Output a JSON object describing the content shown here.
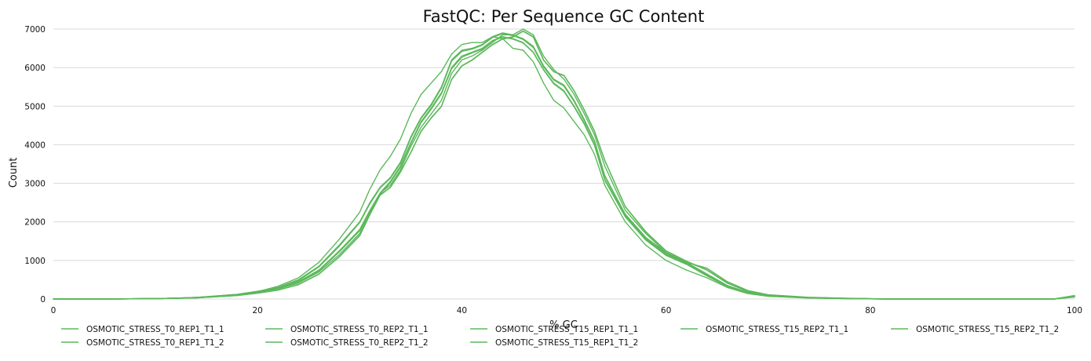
{
  "chart_data": {
    "type": "line",
    "title": "FastQC: Per Sequence GC Content",
    "xlabel": "% GC",
    "ylabel": "Count",
    "xlim": [
      0,
      100
    ],
    "ylim": [
      0,
      7000
    ],
    "x_ticks": [
      0,
      20,
      40,
      60,
      80,
      100
    ],
    "y_ticks": [
      0,
      1000,
      2000,
      3000,
      4000,
      5000,
      6000,
      7000
    ],
    "grid": true,
    "legend_position": "bottom",
    "line_color": "#5cb85c",
    "x": [
      0,
      5,
      10,
      12,
      14,
      16,
      18,
      20,
      22,
      24,
      26,
      28,
      30,
      31,
      32,
      33,
      34,
      35,
      36,
      37,
      38,
      39,
      40,
      41,
      42,
      43,
      44,
      45,
      46,
      47,
      48,
      49,
      50,
      51,
      52,
      53,
      54,
      56,
      58,
      60,
      62,
      64,
      66,
      68,
      70,
      74,
      78,
      82,
      90,
      98,
      100
    ],
    "series": [
      {
        "name": "OSMOTIC_STRESS_T0_REP1_T1_1",
        "values": [
          0,
          0,
          10,
          20,
          40,
          70,
          110,
          180,
          280,
          450,
          750,
          1250,
          1800,
          2300,
          2750,
          3050,
          3450,
          4050,
          4600,
          4950,
          5350,
          6000,
          6300,
          6400,
          6500,
          6700,
          6800,
          6750,
          6650,
          6400,
          5950,
          5600,
          5400,
          5000,
          4550,
          4000,
          3100,
          2150,
          1550,
          1150,
          920,
          620,
          330,
          160,
          80,
          30,
          10,
          0,
          0,
          0,
          80
        ]
      },
      {
        "name": "OSMOTIC_STRESS_T0_REP1_T1_2",
        "values": [
          0,
          0,
          10,
          20,
          40,
          70,
          110,
          180,
          270,
          430,
          730,
          1220,
          1770,
          2270,
          2720,
          3020,
          3420,
          4020,
          4570,
          4920,
          5320,
          5970,
          6270,
          6380,
          6480,
          6690,
          6790,
          6740,
          6640,
          6390,
          5940,
          5580,
          5380,
          4980,
          4530,
          3980,
          3080,
          2130,
          1530,
          1130,
          900,
          600,
          320,
          150,
          75,
          28,
          10,
          0,
          0,
          0,
          70
        ]
      },
      {
        "name": "OSMOTIC_STRESS_T0_REP2_T1_1",
        "values": [
          0,
          0,
          10,
          20,
          40,
          80,
          120,
          200,
          300,
          500,
          850,
          1400,
          2000,
          2500,
          2900,
          3150,
          3550,
          4200,
          4700,
          5050,
          5500,
          6200,
          6450,
          6500,
          6600,
          6800,
          6900,
          6850,
          6750,
          6550,
          6050,
          5700,
          5550,
          5150,
          4650,
          4100,
          3200,
          2200,
          1600,
          1200,
          950,
          650,
          350,
          170,
          85,
          32,
          12,
          0,
          0,
          0,
          90
        ]
      },
      {
        "name": "OSMOTIC_STRESS_T0_REP2_T1_2",
        "values": [
          0,
          0,
          10,
          20,
          40,
          80,
          120,
          200,
          290,
          480,
          830,
          1370,
          1980,
          2470,
          2880,
          3130,
          3520,
          4170,
          4680,
          5020,
          5470,
          6170,
          6420,
          6480,
          6580,
          6780,
          6880,
          6830,
          6730,
          6520,
          6020,
          5680,
          5520,
          5120,
          4620,
          4080,
          3180,
          2180,
          1580,
          1180,
          930,
          630,
          340,
          165,
          82,
          30,
          11,
          0,
          0,
          0,
          85
        ]
      },
      {
        "name": "OSMOTIC_STRESS_T15_REP1_T1_1",
        "values": [
          0,
          0,
          10,
          20,
          30,
          60,
          90,
          150,
          230,
          380,
          650,
          1100,
          1650,
          2200,
          2700,
          2900,
          3300,
          3800,
          4350,
          4700,
          5000,
          5700,
          6050,
          6200,
          6400,
          6600,
          6750,
          6800,
          6950,
          6800,
          6200,
          5900,
          5800,
          5400,
          4900,
          4350,
          3600,
          2400,
          1750,
          1250,
          980,
          760,
          420,
          200,
          100,
          40,
          15,
          0,
          0,
          0,
          60
        ]
      },
      {
        "name": "OSMOTIC_STRESS_T15_REP1_T1_2",
        "values": [
          0,
          0,
          10,
          20,
          30,
          60,
          90,
          150,
          230,
          370,
          640,
          1090,
          1640,
          2190,
          2690,
          2890,
          3290,
          3790,
          4340,
          4690,
          4990,
          5690,
          6040,
          6190,
          6390,
          6590,
          6740,
          6790,
          6940,
          6790,
          6190,
          5890,
          5790,
          5390,
          4890,
          4340,
          3590,
          2390,
          1740,
          1240,
          970,
          750,
          410,
          195,
          98,
          38,
          14,
          0,
          0,
          0,
          55
        ]
      },
      {
        "name": "OSMOTIC_STRESS_T15_REP2_T1_1",
        "values": [
          0,
          0,
          10,
          20,
          30,
          60,
          100,
          170,
          260,
          420,
          700,
          1150,
          1700,
          2250,
          2750,
          2950,
          3350,
          3950,
          4450,
          4800,
          5150,
          5850,
          6200,
          6300,
          6450,
          6650,
          6850,
          6850,
          7000,
          6850,
          6300,
          5950,
          5700,
          5300,
          4800,
          4250,
          3450,
          2300,
          1700,
          1200,
          950,
          800,
          450,
          220,
          110,
          45,
          18,
          0,
          0,
          0,
          60
        ]
      },
      {
        "name": "OSMOTIC_STRESS_T15_REP2_T1_2",
        "values": [
          0,
          0,
          10,
          20,
          30,
          70,
          100,
          190,
          330,
          550,
          950,
          1550,
          2250,
          2850,
          3350,
          3700,
          4150,
          4800,
          5300,
          5600,
          5900,
          6350,
          6600,
          6650,
          6650,
          6800,
          6750,
          6500,
          6450,
          6150,
          5600,
          5150,
          4950,
          4600,
          4250,
          3750,
          2950,
          2000,
          1400,
          1000,
          750,
          550,
          300,
          140,
          70,
          25,
          8,
          0,
          0,
          0,
          50
        ]
      }
    ]
  }
}
